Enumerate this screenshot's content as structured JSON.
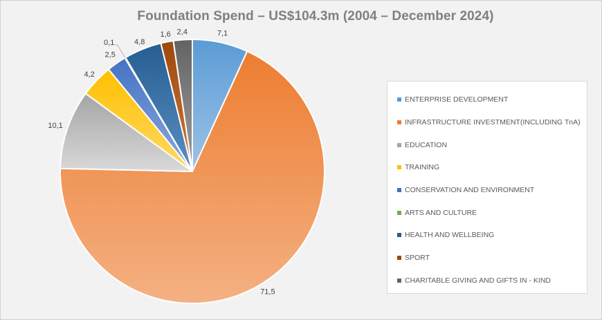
{
  "chart_data": {
    "type": "pie",
    "title": "Foundation Spend – US$104.3m  (2004 – December 2024)",
    "legend_position": "right",
    "series": [
      {
        "name": "ENTERPRISE DEVELOPMENT",
        "label": "7,1",
        "value": 7.1,
        "color": "#5b9bd5",
        "color_light": "#9dc3e6"
      },
      {
        "name": "INFRASTRUCTURE INVESTMENT(INCLUDING TnA)",
        "label": "71,5",
        "value": 71.5,
        "color": "#ed7d31",
        "color_light": "#f4b183"
      },
      {
        "name": "EDUCATION",
        "label": "10,1",
        "value": 10.1,
        "color": "#a5a5a5",
        "color_light": "#d9d9d9"
      },
      {
        "name": "TRAINING",
        "label": "4,2",
        "value": 4.2,
        "color": "#ffc000",
        "color_light": "#ffd966"
      },
      {
        "name": "CONSERVATION AND ENVIRONMENT",
        "label": "2,5",
        "value": 2.5,
        "color": "#4472c4",
        "color_light": "#8faadc"
      },
      {
        "name": "ARTS AND CULTURE",
        "label": "0,1",
        "value": 0.1,
        "color": "#70ad47",
        "color_light": "#a9d18e"
      },
      {
        "name": "HEALTH AND WELLBEING",
        "label": "4,8",
        "value": 4.8,
        "color": "#255e91",
        "color_light": "#5b8fc4"
      },
      {
        "name": "SPORT",
        "label": "1,6",
        "value": 1.6,
        "color": "#9e480e",
        "color_light": "#d0793c"
      },
      {
        "name": "CHARITABLE GIVING AND GIFTS IN - KIND",
        "label": "2,4",
        "value": 2.4,
        "color": "#636363",
        "color_light": "#a0a0a0"
      }
    ]
  }
}
